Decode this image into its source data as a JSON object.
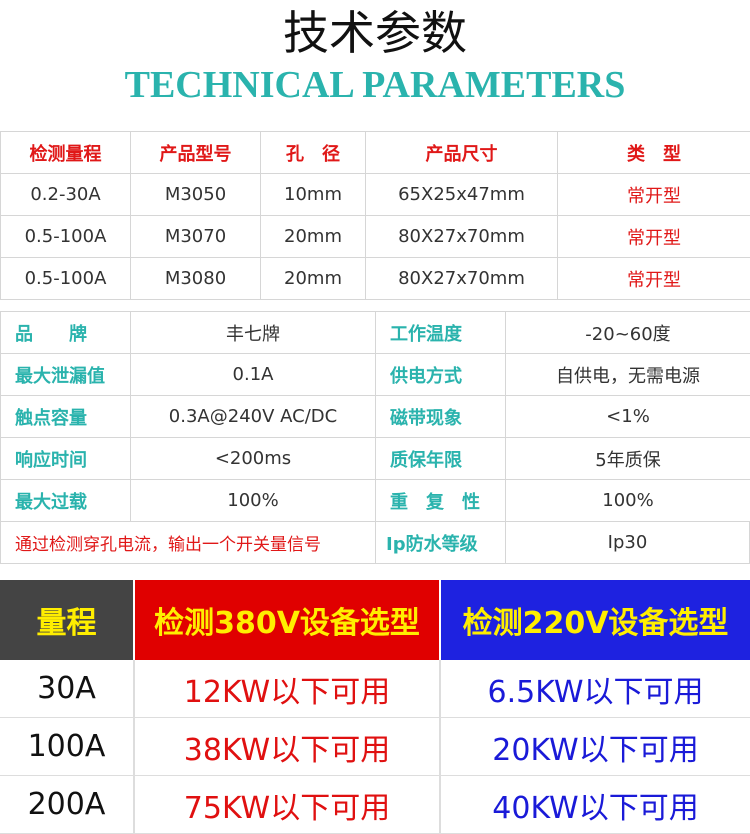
{
  "title": "技术参数",
  "subtitle": "TECHNICAL PARAMETERS",
  "spec_table": {
    "header": [
      "检测量程",
      "产品型号",
      "孔　径",
      "产品尺寸",
      "类　型"
    ],
    "rows": [
      [
        "0.2-30A",
        "M3050",
        "10mm",
        "65X25x47mm",
        "常开型"
      ],
      [
        "0.5-100A",
        "M3070",
        "20mm",
        "80X27x70mm",
        "常开型"
      ],
      [
        "0.5-100A",
        "M3080",
        "20mm",
        "80X27x70mm",
        "常开型"
      ]
    ]
  },
  "props_table": {
    "rows": [
      [
        "品　　牌",
        "丰七牌",
        "工作温度",
        "-20~60度"
      ],
      [
        "最大泄漏值",
        "0.1A",
        "供电方式",
        "自供电，无需电源"
      ],
      [
        "触点容量",
        "0.3A@240V  AC/DC",
        "磁带现象",
        "<1%"
      ],
      [
        "响应时间",
        "<200ms",
        "质保年限",
        "5年质保"
      ],
      [
        "最大过载",
        "100%",
        "重　复　性",
        "100%"
      ]
    ],
    "note": "通过检测穿孔电流，输出一个开关量信号",
    "last_label": "Ip防水等级",
    "last_value": "Ip30"
  },
  "selection_table": {
    "header": [
      "量程",
      "检测380V设备选型",
      "检测220V设备选型"
    ],
    "rows": [
      [
        "30A",
        "12KW以下可用",
        "6.5KW以下可用"
      ],
      [
        "100A",
        "38KW以下可用",
        "20KW以下可用"
      ],
      [
        "200A",
        "75KW以下可用",
        "40KW以下可用"
      ]
    ]
  }
}
